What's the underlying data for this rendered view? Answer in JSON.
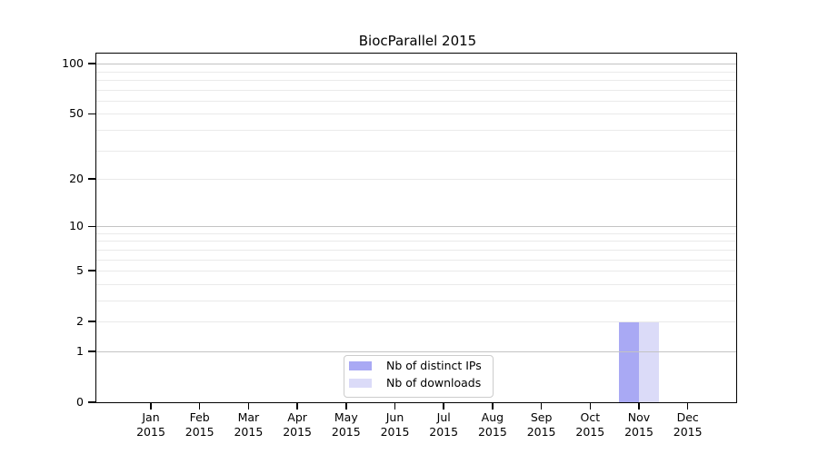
{
  "chart_data": {
    "type": "bar",
    "title": "BiocParallel 2015",
    "categories": [
      "Jan",
      "Feb",
      "Mar",
      "Apr",
      "May",
      "Jun",
      "Jul",
      "Aug",
      "Sep",
      "Oct",
      "Nov",
      "Dec"
    ],
    "x_year_label": "2015",
    "series": [
      {
        "name": "Nb of distinct IPs",
        "color": "#a9a9f4",
        "values": [
          0,
          0,
          0,
          0,
          0,
          0,
          0,
          0,
          0,
          0,
          2,
          0
        ]
      },
      {
        "name": "Nb of downloads",
        "color": "#dbdbf8",
        "values": [
          0,
          0,
          0,
          0,
          0,
          0,
          0,
          0,
          0,
          0,
          2,
          0
        ]
      }
    ],
    "yscale": "log1p",
    "ylim": [
      0,
      115
    ],
    "y_ticks": [
      0,
      1,
      2,
      5,
      10,
      20,
      50,
      100
    ],
    "y_decade_ticks": [
      1,
      10,
      100
    ],
    "y_minor_gridlines": [
      3,
      4,
      6,
      7,
      8,
      9,
      30,
      40,
      60,
      70,
      80,
      90
    ],
    "grid": true,
    "legend_position": "lower center"
  },
  "colors": {
    "major_gridline": "#c3c3c3",
    "minor_gridline": "#eaeaea",
    "axis": "#000000",
    "legend_border": "#cccccc",
    "background": "#ffffff"
  }
}
